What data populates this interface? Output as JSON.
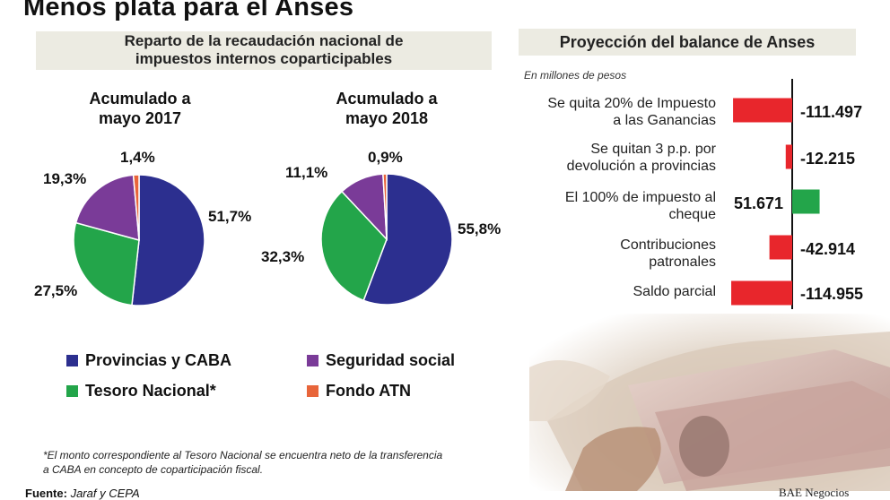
{
  "title": "Menos plata para el Anses",
  "left_panel": {
    "title_line1": "Reparto de la recaudación nacional de",
    "title_line2": "impuestos internos coparticipables"
  },
  "right_panel": {
    "title": "Proyección del balance de Anses",
    "units": "En millones de pesos"
  },
  "legend": [
    {
      "label": "Provincias y CABA",
      "color": "#2c2f8f"
    },
    {
      "label": "Seguridad social",
      "color": "#7a3b98"
    },
    {
      "label": "Tesoro Nacional*",
      "color": "#23a54a"
    },
    {
      "label": "Fondo ATN",
      "color": "#e8653a"
    }
  ],
  "footnote_line1": "*El monto correspondiente al Tesoro Nacional se encuentra neto de la transferencia",
  "footnote_line2": "a CABA en concepto de coparticipación fiscal.",
  "source_label": "Fuente:",
  "source_value": "Jaraf y CEPA",
  "credit": "BAE Negocios",
  "chart_data": [
    {
      "type": "pie",
      "title_line1": "Acumulado a",
      "title_line2": "mayo 2017",
      "categories": [
        "Provincias y CABA",
        "Tesoro Nacional*",
        "Seguridad social",
        "Fondo ATN"
      ],
      "values": [
        51.7,
        27.5,
        19.3,
        1.4
      ],
      "labels": [
        "51,7%",
        "27,5%",
        "19,3%",
        "1,4%"
      ],
      "colors": [
        "#2c2f8f",
        "#23a54a",
        "#7a3b98",
        "#e8653a"
      ]
    },
    {
      "type": "pie",
      "title_line1": "Acumulado a",
      "title_line2": "mayo 2018",
      "categories": [
        "Provincias y CABA",
        "Tesoro Nacional*",
        "Seguridad social",
        "Fondo ATN"
      ],
      "values": [
        55.8,
        32.3,
        11.1,
        0.9
      ],
      "labels": [
        "55,8%",
        "32,3%",
        "11,1%",
        "0,9%"
      ],
      "colors": [
        "#2c2f8f",
        "#23a54a",
        "#7a3b98",
        "#e8653a"
      ]
    },
    {
      "type": "bar",
      "orientation": "horizontal",
      "categories": [
        [
          "Se quita 20% de Impuesto",
          "a las Ganancias"
        ],
        [
          "Se quitan 3 p.p. por",
          "devolución a provincias"
        ],
        [
          "El 100% de impuesto al",
          "cheque"
        ],
        [
          "Contribuciones",
          "patronales"
        ],
        [
          "Saldo parcial"
        ]
      ],
      "values": [
        -111497,
        -12215,
        51671,
        -42914,
        -114955
      ],
      "value_labels": [
        "-111.497",
        "-12.215",
        "51.671",
        "-42.914",
        "-114.955"
      ],
      "positive_color": "#23a54a",
      "negative_color": "#e8262c",
      "xlim": [
        -120000,
        60000
      ]
    }
  ]
}
